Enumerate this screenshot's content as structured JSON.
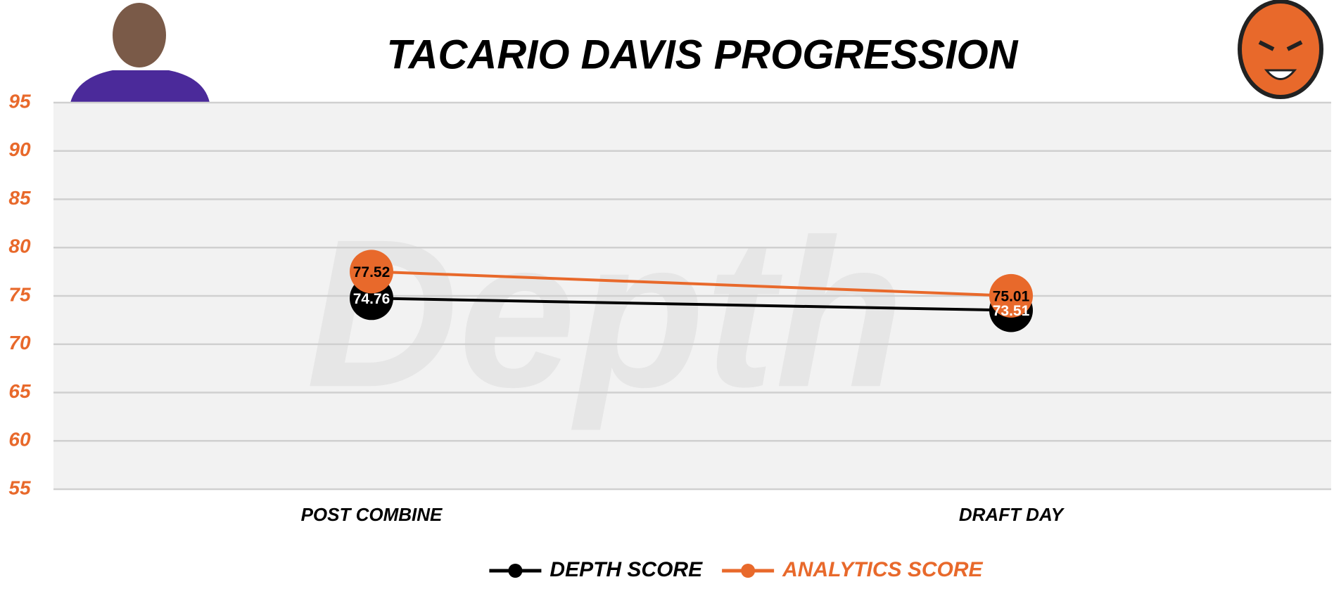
{
  "chart_data": {
    "type": "line",
    "title": "TACARIO DAVIS PROGRESSION",
    "watermark": "Depth",
    "categories": [
      "POST COMBINE",
      "DRAFT DAY"
    ],
    "series": [
      {
        "name": "DEPTH SCORE",
        "color": "#000000",
        "values": [
          74.76,
          73.51
        ]
      },
      {
        "name": "ANALYTICS SCORE",
        "color": "#e8692b",
        "values": [
          77.52,
          75.01
        ]
      }
    ],
    "ylim": [
      55,
      95
    ],
    "yticks": [
      55,
      60,
      65,
      70,
      75,
      80,
      85,
      90,
      95
    ],
    "grid": true,
    "legend": "bottom"
  }
}
